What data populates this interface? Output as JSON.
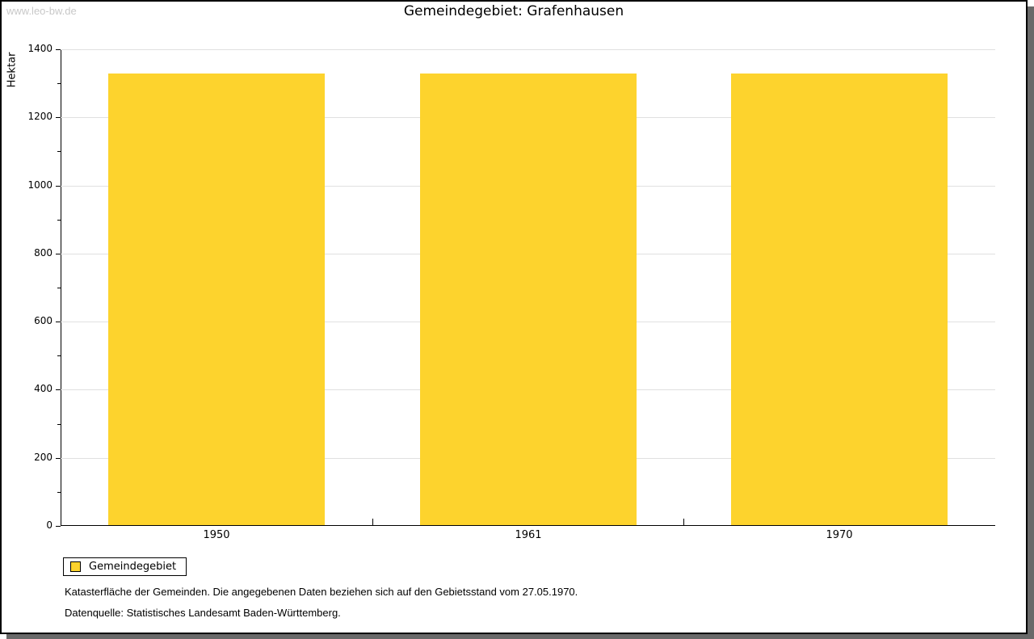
{
  "watermark": "www.leo-bw.de",
  "title": "Gemeindegebiet: Grafenhausen",
  "chart_data": {
    "type": "bar",
    "title": "Gemeindegebiet: Grafenhausen",
    "categories": [
      "1950",
      "1961",
      "1970"
    ],
    "series": [
      {
        "name": "Gemeindegebiet",
        "values": [
          1329,
          1329,
          1329
        ]
      }
    ],
    "xlabel": "",
    "ylabel": "Hektar",
    "ylim": [
      0,
      1400
    ],
    "y_ticks": [
      0,
      200,
      400,
      600,
      800,
      1000,
      1200,
      1400
    ],
    "y_minor_step": 100,
    "grid": true,
    "legend_position": "bottom-left",
    "bar_color": "#fdd32d",
    "gridline_color": "#e0e0e0"
  },
  "legend": {
    "items": [
      {
        "label": "Gemeindegebiet",
        "color": "#fdd32d"
      }
    ]
  },
  "footer": {
    "line1": "Katasterfläche der Gemeinden. Die angegebenen Daten beziehen sich auf den Gebietsstand vom 27.05.1970.",
    "line2": "Datenquelle: Statistisches Landesamt Baden-Württemberg."
  },
  "colors": {
    "bar": "#fdd32d",
    "gridline": "#e0e0e0",
    "shadow": "#696969",
    "watermark": "#c8c8c8",
    "axis": "#000000"
  }
}
